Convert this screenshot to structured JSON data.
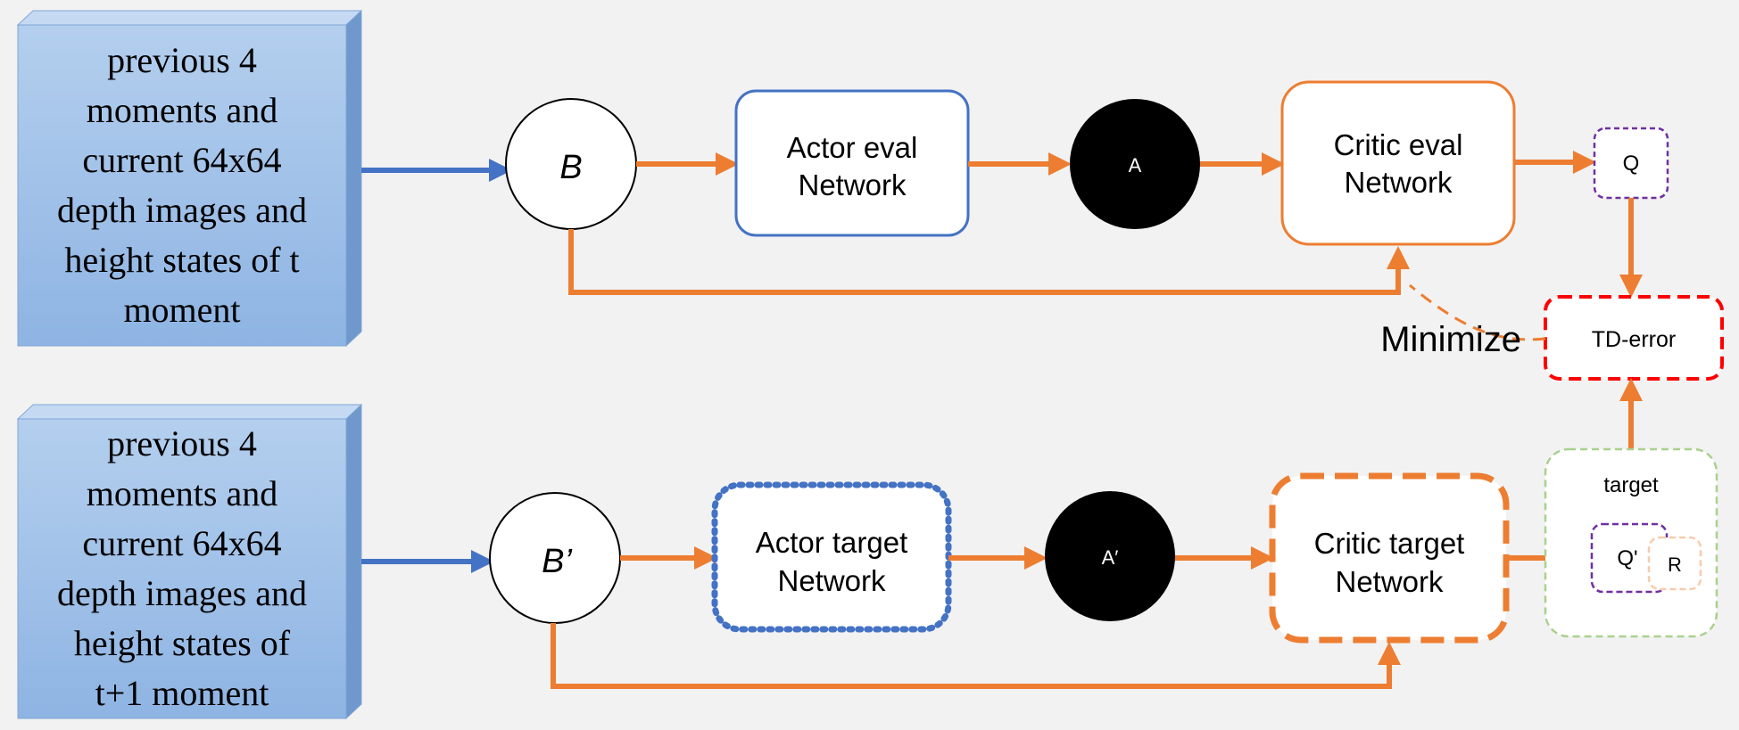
{
  "top_state_text": "previous 4\nmoments and\ncurrent 64x64\ndepth images and\nheight states of t\nmoment",
  "bottom_state_text": "previous 4\nmoments and\ncurrent 64x64\ndepth images and\nheight states of\nt+1 moment",
  "node_B": "B",
  "node_B_prime": "B’",
  "actor_eval": [
    "Actor eval",
    "Network"
  ],
  "action_A": "A",
  "critic_eval": [
    "Critic eval",
    "Network"
  ],
  "q_label": "Q",
  "td_error": "TD-error",
  "minimize": "Minimize",
  "actor_target": [
    "Actor target",
    "Network"
  ],
  "action_A_prime": "A′",
  "critic_target": [
    "Critic target",
    "Network"
  ],
  "target_label": "target",
  "q_prime": "Q'",
  "r_label": "R",
  "colors": {
    "orange": "#ed7d31",
    "blue": "#4472c4",
    "red": "#ff0000",
    "purple": "#7030a0",
    "green": "#a9d18e",
    "peach": "#f8cbad",
    "box_fill": "#9dc3e6"
  }
}
